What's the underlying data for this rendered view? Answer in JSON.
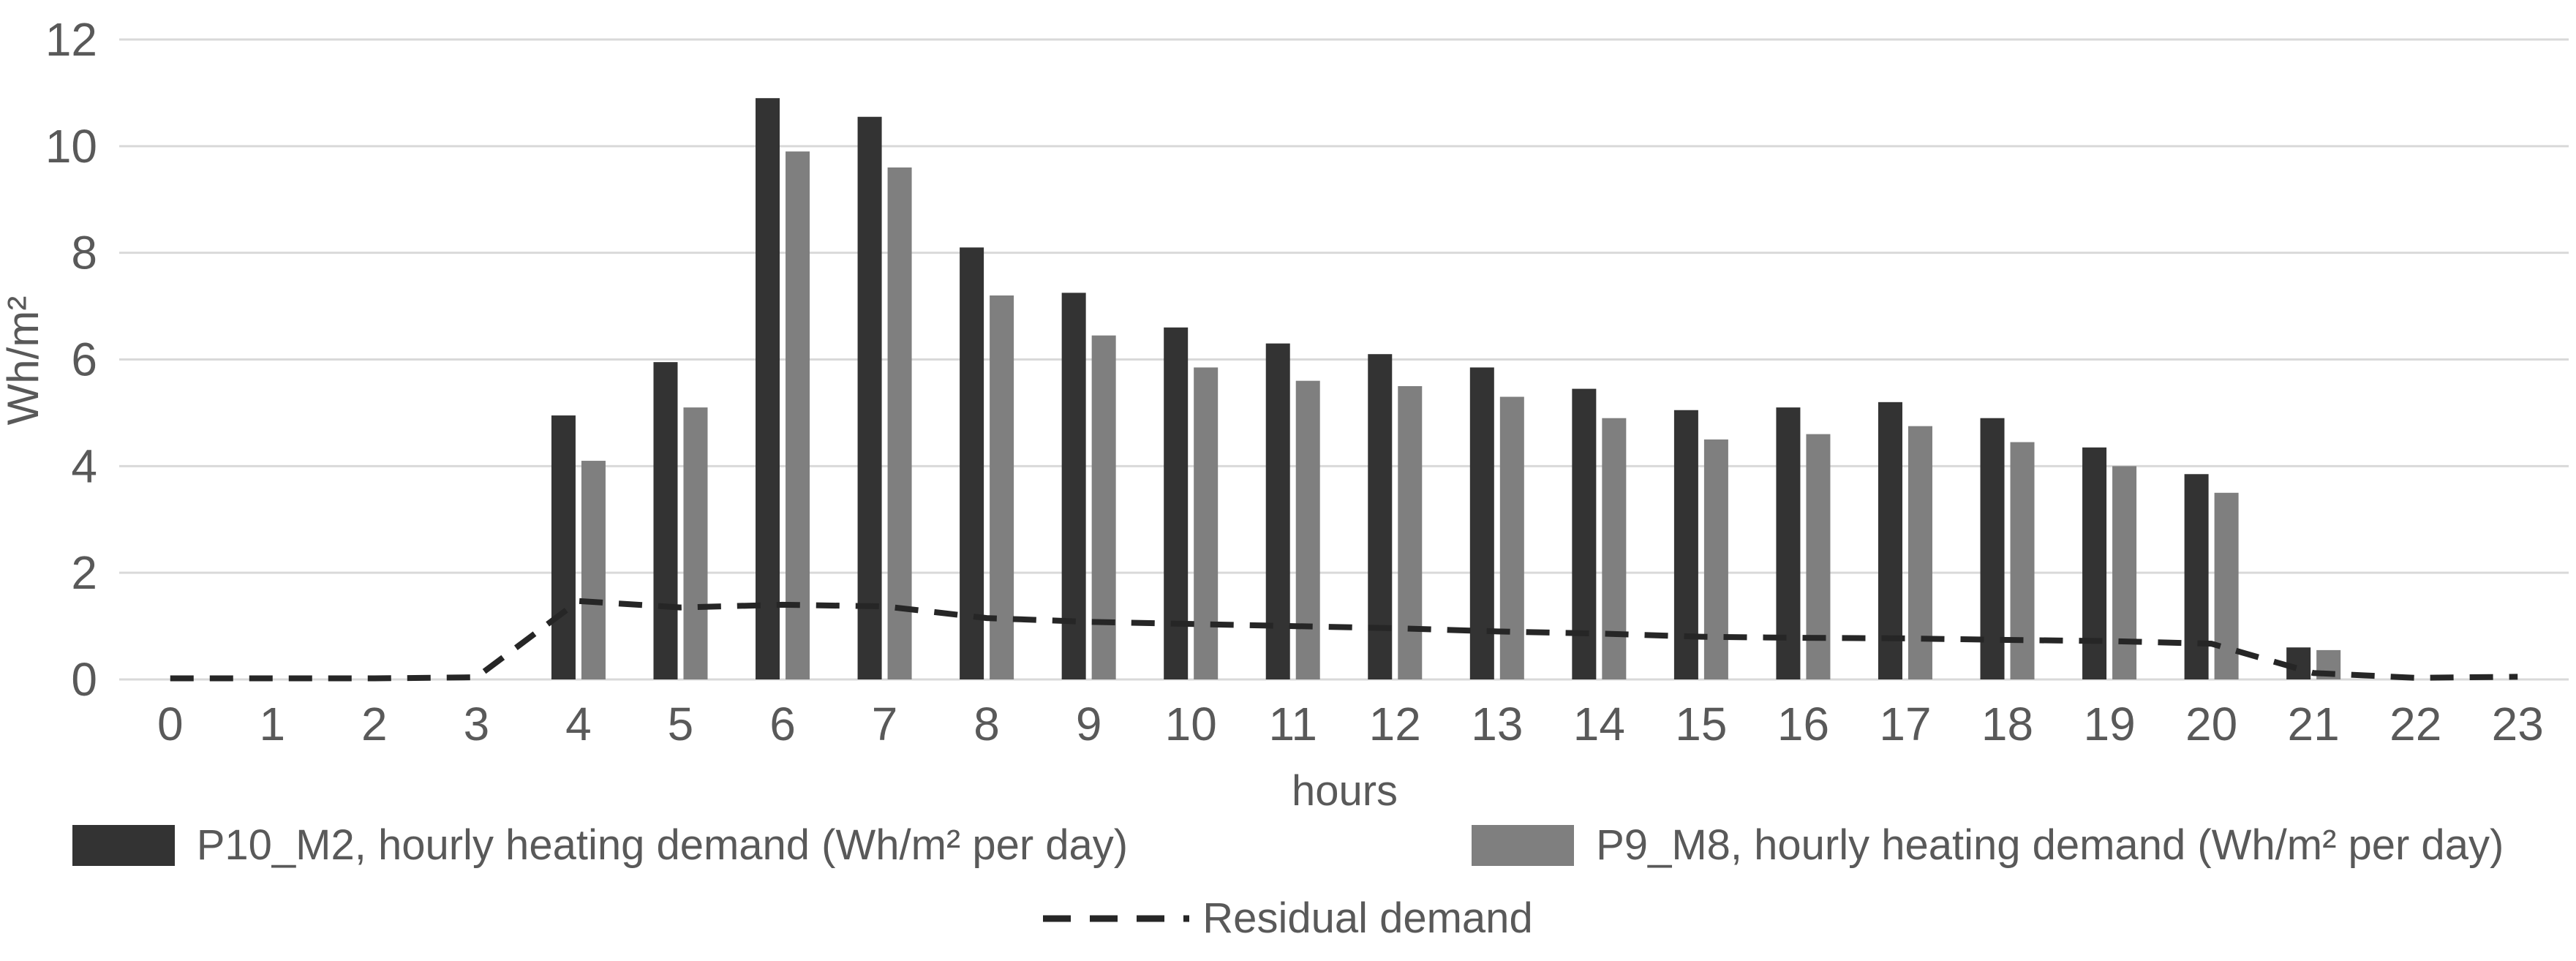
{
  "chart_data": {
    "type": "bar",
    "title": "",
    "xlabel": "hours",
    "ylabel": "Wh/m²",
    "ylim": [
      0,
      12
    ],
    "yticks": [
      0,
      2,
      4,
      6,
      8,
      10,
      12
    ],
    "categories": [
      "0",
      "1",
      "2",
      "3",
      "4",
      "5",
      "6",
      "7",
      "8",
      "9",
      "10",
      "11",
      "12",
      "13",
      "14",
      "15",
      "16",
      "17",
      "18",
      "19",
      "20",
      "21",
      "22",
      "23"
    ],
    "grid": true,
    "legend_position": "bottom",
    "background_color": "#ffffff",
    "grid_color": "#d9d9d9",
    "text_color": "#595959",
    "series": [
      {
        "name": "P10_M2, hourly heating demand (Wh/m² per day)",
        "type": "bar",
        "color": "#333333",
        "values": [
          0,
          0,
          0,
          0,
          4.95,
          5.95,
          10.9,
          10.55,
          8.1,
          7.25,
          6.6,
          6.3,
          6.1,
          5.85,
          5.45,
          5.05,
          5.1,
          5.2,
          4.9,
          4.35,
          3.85,
          0.6,
          0,
          0
        ]
      },
      {
        "name": "P9_M8, hourly heating demand (Wh/m² per day)",
        "type": "bar",
        "color": "#7f7f7f",
        "values": [
          0,
          0,
          0,
          0,
          4.1,
          5.1,
          9.9,
          9.6,
          7.2,
          6.45,
          5.85,
          5.6,
          5.5,
          5.3,
          4.9,
          4.5,
          4.6,
          4.75,
          4.45,
          4.0,
          3.5,
          0.55,
          0,
          0
        ]
      },
      {
        "name": "Residual demand",
        "type": "line",
        "line_style": "dashed",
        "color": "#262626",
        "values": [
          0.02,
          0.02,
          0.02,
          0.04,
          1.47,
          1.35,
          1.4,
          1.37,
          1.15,
          1.08,
          1.04,
          1.0,
          0.96,
          0.9,
          0.86,
          0.8,
          0.78,
          0.77,
          0.74,
          0.72,
          0.67,
          0.12,
          0.03,
          0.05
        ]
      }
    ]
  }
}
